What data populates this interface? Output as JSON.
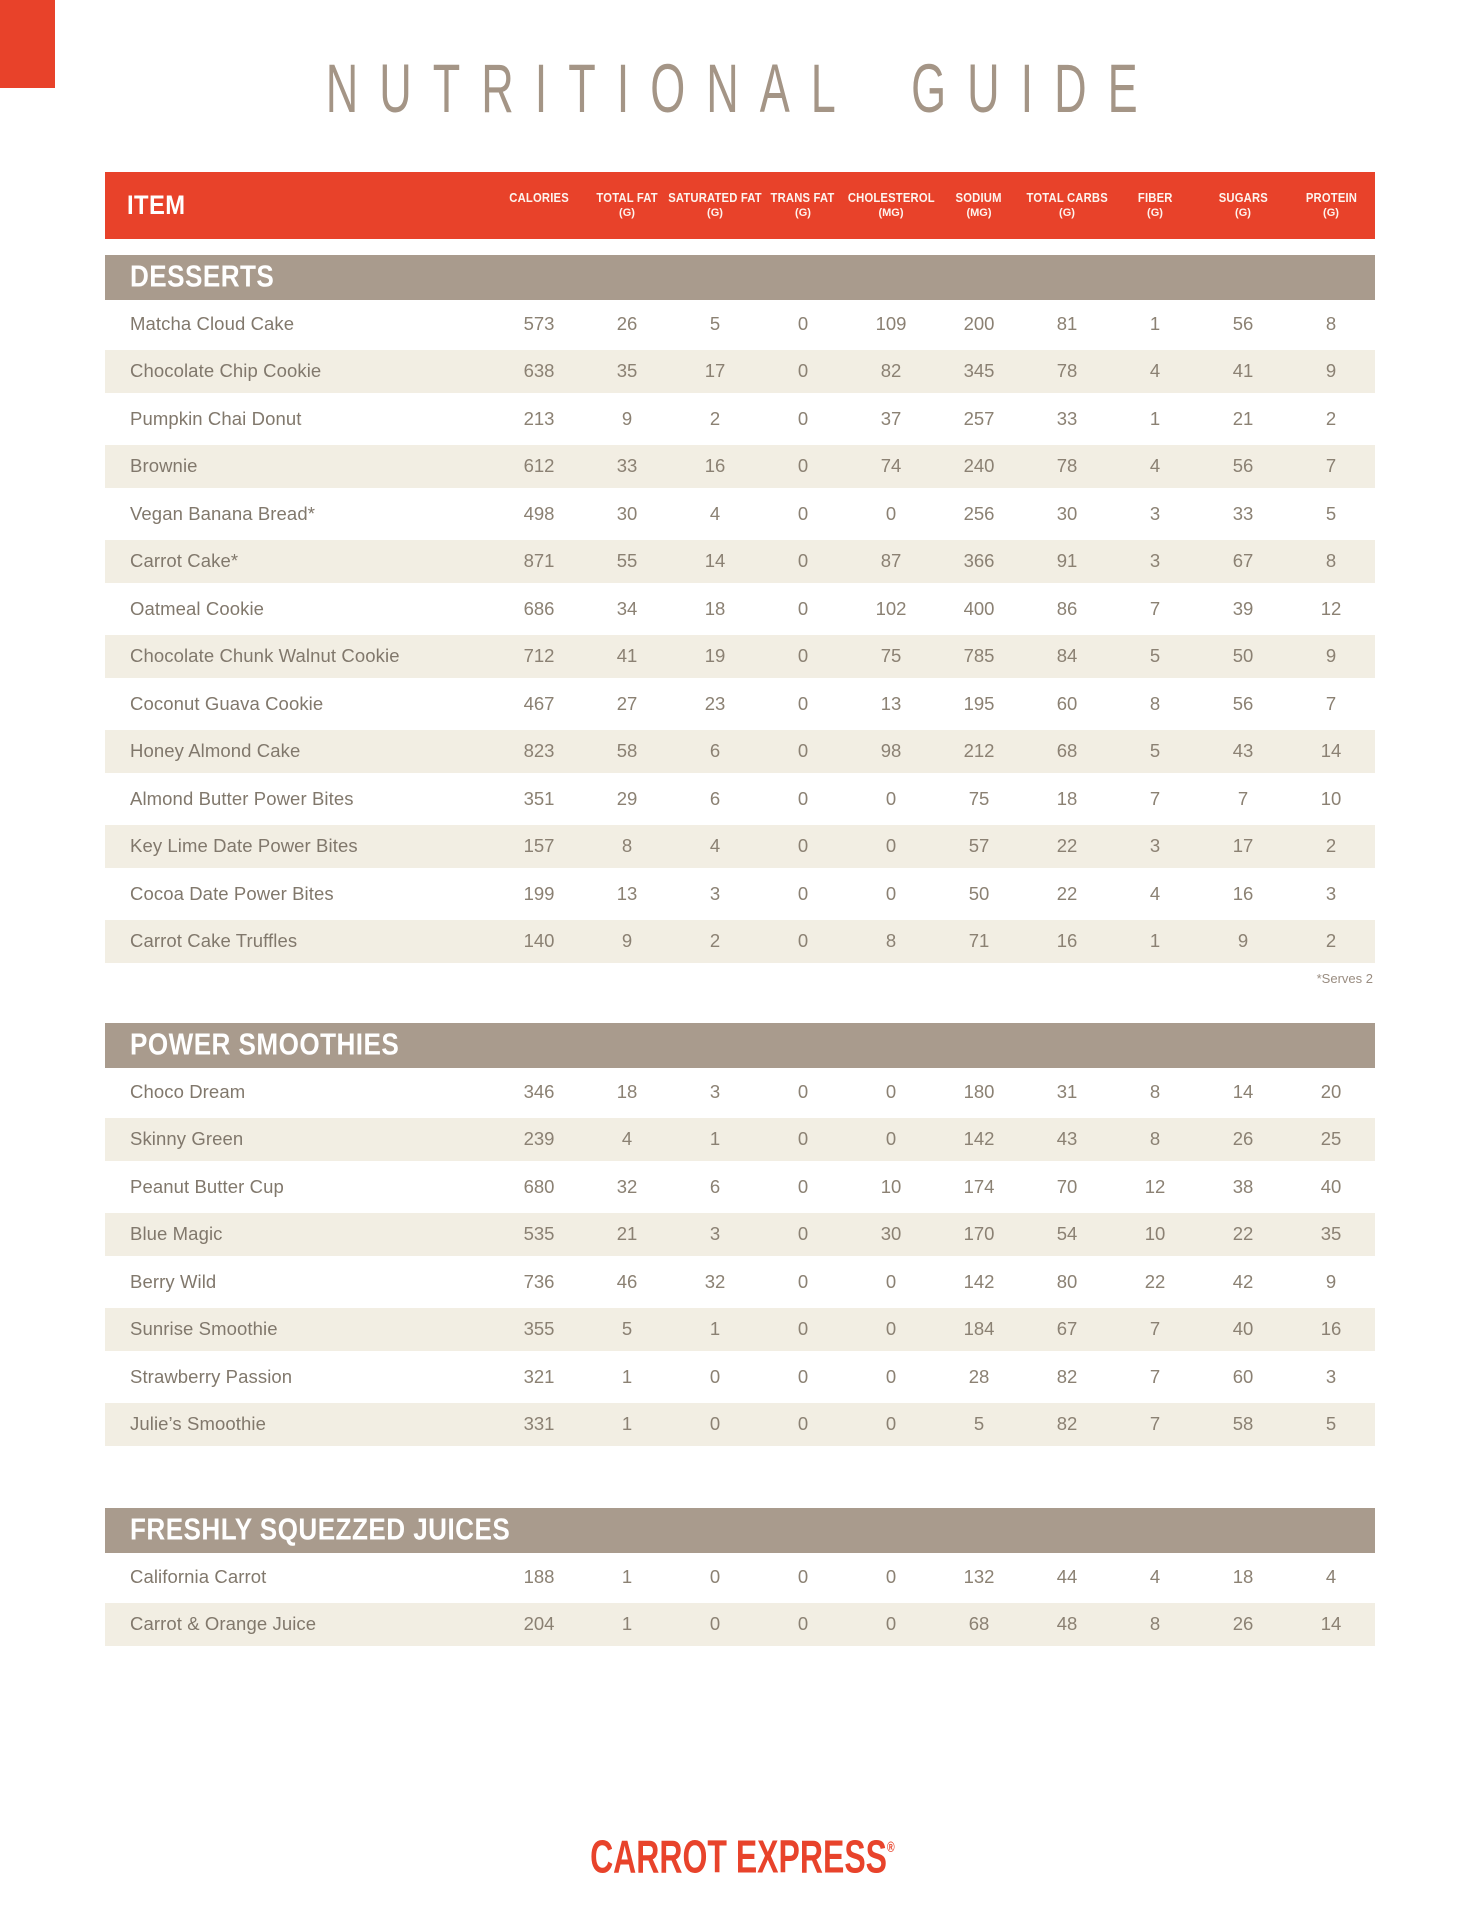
{
  "page": {
    "title": "NUTRITIONAL GUIDE",
    "footer_logo": "CARROT EXPRESS",
    "footer_reg": "®"
  },
  "colors": {
    "accent_orange": "#e8422a",
    "section_taupe": "#a99b8d",
    "row_cream": "#f2eee3",
    "title_tan": "#a49586",
    "body_text": "#81786c"
  },
  "table": {
    "item_header": "ITEM",
    "columns": [
      {
        "label": "CALORIES",
        "unit": ""
      },
      {
        "label": "TOTAL FAT",
        "unit": "(G)"
      },
      {
        "label": "SATURATED FAT",
        "unit": "(G)"
      },
      {
        "label": "TRANS FAT",
        "unit": "(G)"
      },
      {
        "label": "CHOLESTEROL",
        "unit": "(MG)"
      },
      {
        "label": "SODIUM",
        "unit": "(MG)"
      },
      {
        "label": "TOTAL CARBS",
        "unit": "(G)"
      },
      {
        "label": "FIBER",
        "unit": "(G)"
      },
      {
        "label": "SUGARS",
        "unit": "(G)"
      },
      {
        "label": "PROTEIN",
        "unit": "(G)"
      }
    ],
    "sections": [
      {
        "name": "DESSERTS",
        "footnote": "*Serves 2",
        "rows": [
          {
            "name": "Matcha Cloud Cake",
            "values": [
              573,
              26,
              5,
              0,
              109,
              200,
              81,
              1,
              56,
              8
            ]
          },
          {
            "name": "Chocolate Chip Cookie",
            "values": [
              638,
              35,
              17,
              0,
              82,
              345,
              78,
              4,
              41,
              9
            ]
          },
          {
            "name": "Pumpkin Chai Donut",
            "values": [
              213,
              9,
              2,
              0,
              37,
              257,
              33,
              1,
              21,
              2
            ]
          },
          {
            "name": "Brownie",
            "values": [
              612,
              33,
              16,
              0,
              74,
              240,
              78,
              4,
              56,
              7
            ]
          },
          {
            "name": "Vegan Banana Bread*",
            "values": [
              498,
              30,
              4,
              0,
              0,
              256,
              30,
              3,
              33,
              5
            ]
          },
          {
            "name": "Carrot Cake*",
            "values": [
              871,
              55,
              14,
              0,
              87,
              366,
              91,
              3,
              67,
              8
            ]
          },
          {
            "name": "Oatmeal Cookie",
            "values": [
              686,
              34,
              18,
              0,
              102,
              400,
              86,
              7,
              39,
              12
            ]
          },
          {
            "name": "Chocolate Chunk Walnut Cookie",
            "values": [
              712,
              41,
              19,
              0,
              75,
              785,
              84,
              5,
              50,
              9
            ]
          },
          {
            "name": "Coconut Guava Cookie",
            "values": [
              467,
              27,
              23,
              0,
              13,
              195,
              60,
              8,
              56,
              7
            ]
          },
          {
            "name": "Honey Almond Cake",
            "values": [
              823,
              58,
              6,
              0,
              98,
              212,
              68,
              5,
              43,
              14
            ]
          },
          {
            "name": "Almond Butter Power Bites",
            "values": [
              351,
              29,
              6,
              0,
              0,
              75,
              18,
              7,
              7,
              10
            ]
          },
          {
            "name": "Key Lime Date Power Bites",
            "values": [
              157,
              8,
              4,
              0,
              0,
              57,
              22,
              3,
              17,
              2
            ]
          },
          {
            "name": "Cocoa Date Power Bites",
            "values": [
              199,
              13,
              3,
              0,
              0,
              50,
              22,
              4,
              16,
              3
            ]
          },
          {
            "name": "Carrot Cake Truffles",
            "values": [
              140,
              9,
              2,
              0,
              8,
              71,
              16,
              1,
              9,
              2
            ]
          }
        ]
      },
      {
        "name": "POWER SMOOTHIES",
        "rows": [
          {
            "name": "Choco Dream",
            "values": [
              346,
              18,
              3,
              0,
              0,
              180,
              31,
              8,
              14,
              20
            ]
          },
          {
            "name": "Skinny Green",
            "values": [
              239,
              4,
              1,
              0,
              0,
              142,
              43,
              8,
              26,
              25
            ]
          },
          {
            "name": "Peanut Butter Cup",
            "values": [
              680,
              32,
              6,
              0,
              10,
              174,
              70,
              12,
              38,
              40
            ]
          },
          {
            "name": "Blue Magic",
            "values": [
              535,
              21,
              3,
              0,
              30,
              170,
              54,
              10,
              22,
              35
            ]
          },
          {
            "name": "Berry Wild",
            "values": [
              736,
              46,
              32,
              0,
              0,
              142,
              80,
              22,
              42,
              9
            ]
          },
          {
            "name": "Sunrise Smoothie",
            "values": [
              355,
              5,
              1,
              0,
              0,
              184,
              67,
              7,
              40,
              16
            ]
          },
          {
            "name": "Strawberry Passion",
            "values": [
              321,
              1,
              0,
              0,
              0,
              28,
              82,
              7,
              60,
              3
            ]
          },
          {
            "name": "Julie’s Smoothie",
            "values": [
              331,
              1,
              0,
              0,
              0,
              5,
              82,
              7,
              58,
              5
            ]
          }
        ]
      },
      {
        "name": "FRESHLY SQUEZZED JUICES",
        "rows": [
          {
            "name": "California Carrot",
            "values": [
              188,
              1,
              0,
              0,
              0,
              132,
              44,
              4,
              18,
              4
            ]
          },
          {
            "name": "Carrot & Orange Juice",
            "values": [
              204,
              1,
              0,
              0,
              0,
              68,
              48,
              8,
              26,
              14
            ]
          }
        ]
      }
    ]
  }
}
